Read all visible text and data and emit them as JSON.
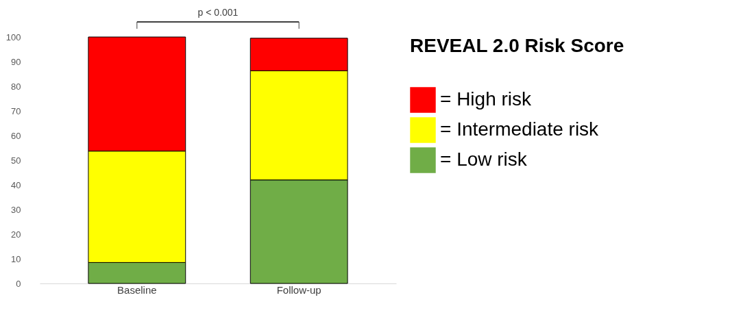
{
  "chart_data": {
    "type": "bar",
    "stacked": true,
    "categories": [
      "Baseline",
      "Follow-up"
    ],
    "series": [
      {
        "name": "= Low risk",
        "color": "#70ad47",
        "values": [
          8.5,
          42
        ]
      },
      {
        "name": "= Intermediate risk",
        "color": "#ffff00",
        "values": [
          45.2,
          44.3
        ]
      },
      {
        "name": "= High risk",
        "color": "#ff0000",
        "values": [
          46.3,
          13.2
        ]
      }
    ],
    "legend_title": "REVEAL 2.0 Risk Score",
    "legend": "right",
    "ylim": [
      0,
      100
    ],
    "yticks": [
      0,
      10,
      20,
      30,
      40,
      50,
      60,
      70,
      80,
      90,
      100
    ],
    "grid": false,
    "annotations": [
      "p < 0.001"
    ]
  }
}
